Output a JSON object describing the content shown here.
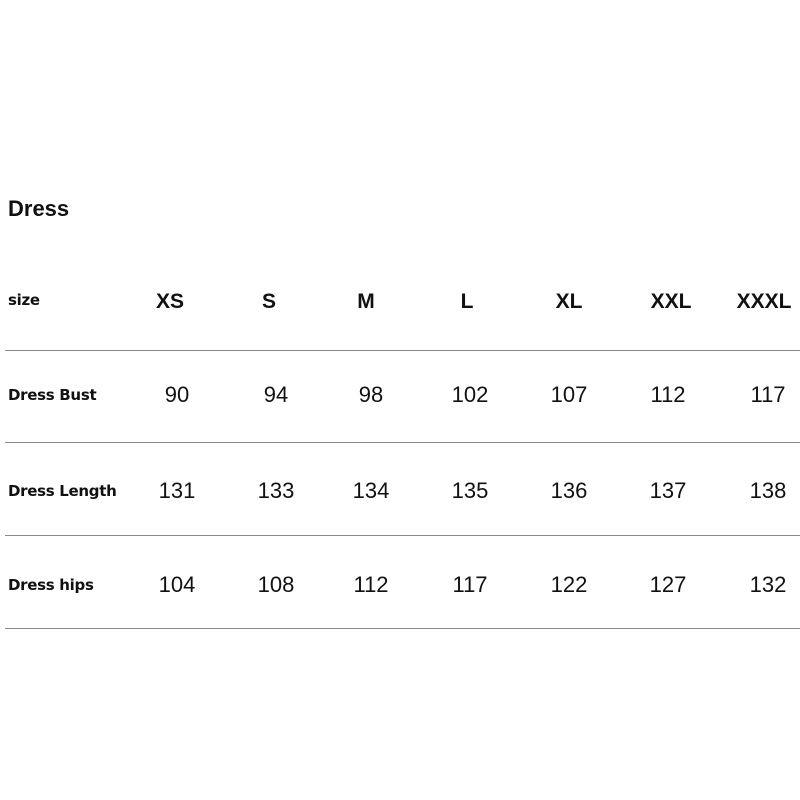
{
  "title": "Dress",
  "table": {
    "header_label": "size",
    "sizes": [
      "XS",
      "S",
      "M",
      "L",
      "XL",
      "XXL",
      "XXXL"
    ],
    "rows": [
      {
        "label": "Dress Bust",
        "values": [
          "90",
          "94",
          "98",
          "102",
          "107",
          "112",
          "117"
        ]
      },
      {
        "label": "Dress Length",
        "values": [
          "131",
          "133",
          "134",
          "135",
          "136",
          "137",
          "138"
        ]
      },
      {
        "label": "Dress hips",
        "values": [
          "104",
          "108",
          "112",
          "117",
          "122",
          "127",
          "132"
        ]
      }
    ]
  }
}
